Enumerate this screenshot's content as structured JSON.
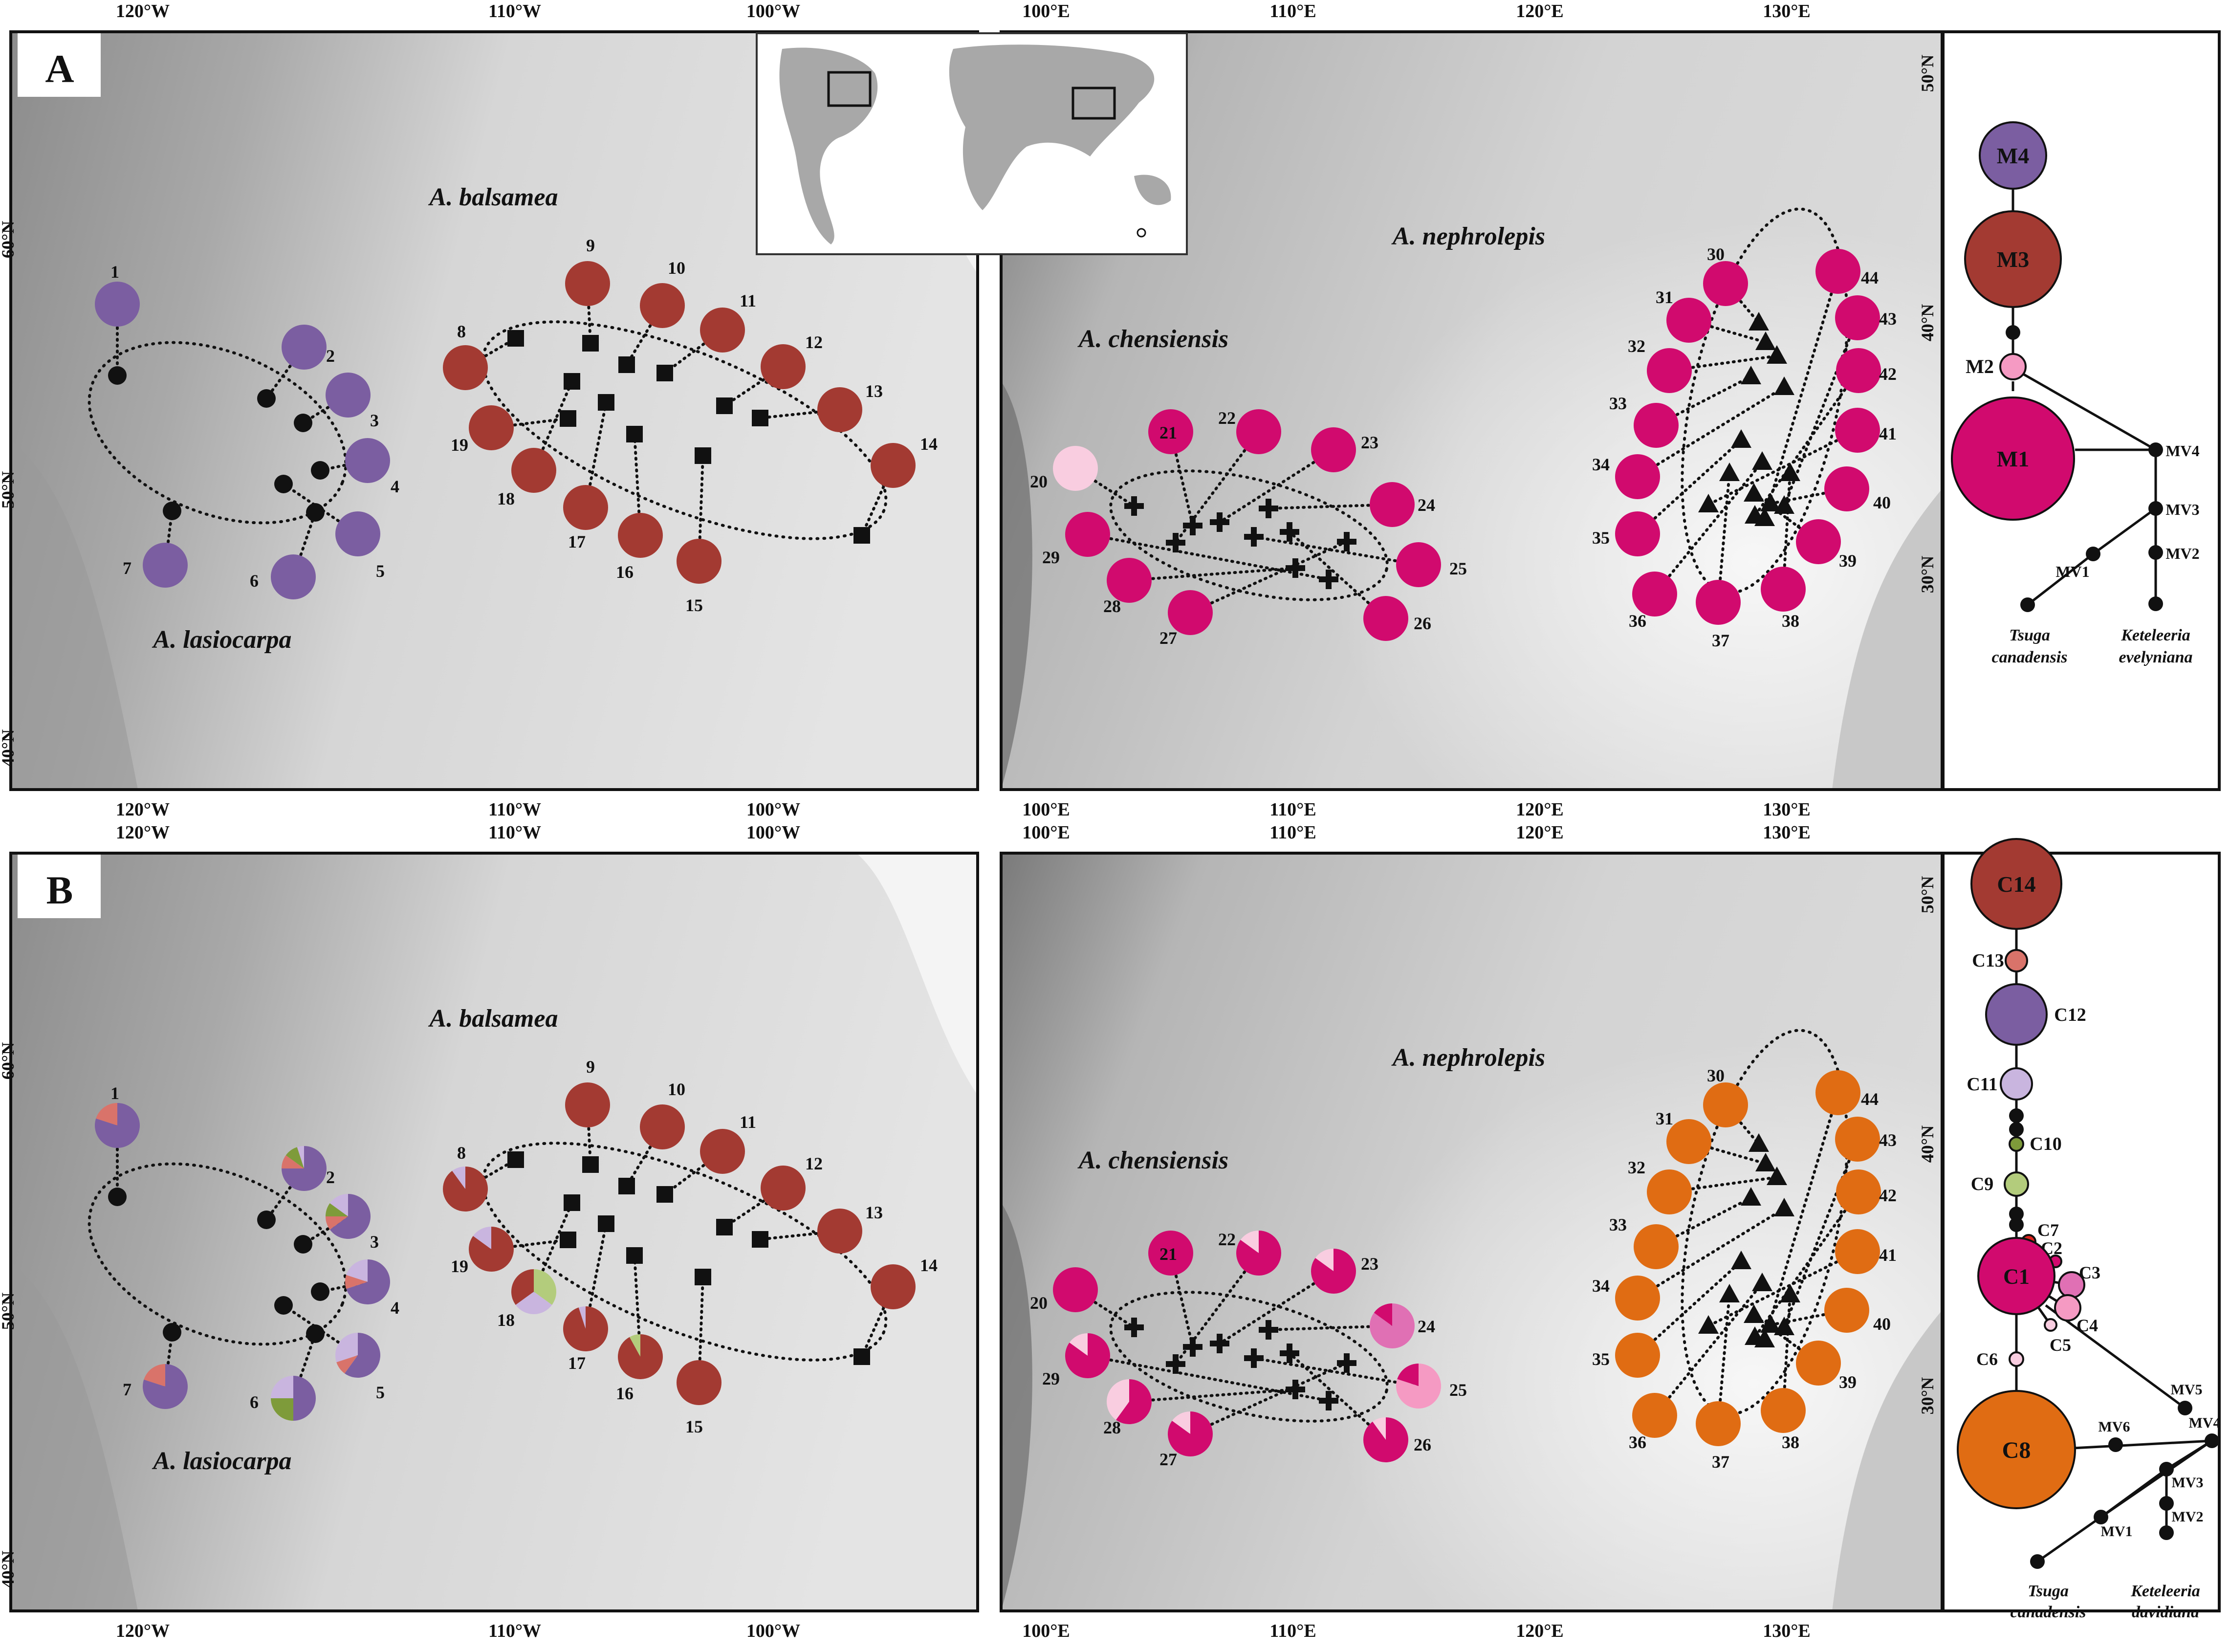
{
  "panels": [
    {
      "letter": "A",
      "na_species": {
        "lasiocarpa": "A. lasiocarpa",
        "balsamea": "A. balsamea"
      },
      "ea_species": {
        "chensiensis": "A. chensiensis",
        "nephrolepis": "A. nephrolepis"
      },
      "na_lon_ticks": [
        "120°W",
        "110°W",
        "100°W"
      ],
      "na_lat_ticks": [
        "60°N",
        "50°N",
        "40°N"
      ],
      "ea_lon_ticks": [
        "100°E",
        "110°E",
        "120°E",
        "130°E"
      ],
      "ea_lat_ticks": [
        "50°N",
        "40°N",
        "30°N"
      ],
      "network_type": "mito",
      "network_outgroups": {
        "a_line1": "Tsuga",
        "a_line2": "canadensis",
        "b_line1": "Keteleeria",
        "b_line2": "evelyniana"
      }
    },
    {
      "letter": "B",
      "na_species": {
        "lasiocarpa": "A. lasiocarpa",
        "balsamea": "A. balsamea"
      },
      "ea_species": {
        "chensiensis": "A. chensiensis",
        "nephrolepis": "A. nephrolepis"
      },
      "na_lon_ticks": [
        "120°W",
        "110°W",
        "100°W"
      ],
      "na_lat_ticks": [
        "60°N",
        "50°N",
        "40°N"
      ],
      "ea_lon_ticks": [
        "100°E",
        "110°E",
        "120°E",
        "130°E"
      ],
      "ea_lat_ticks": [
        "50°N",
        "40°N",
        "30°N"
      ],
      "network_type": "chloro",
      "network_outgroups": {
        "a_line1": "Tsuga",
        "a_line2": "canadensis",
        "b_line1": "Keteleeria",
        "b_line2": "davidiana"
      }
    }
  ],
  "colors": {
    "purple": "#7b5ea1",
    "brown": "#a33a32",
    "magenta": "#d10a6e",
    "pale_pink": "#f9cde0",
    "pink": "#f59ac3",
    "orange": "#e06c13",
    "salmon": "#d9736a",
    "lavender": "#c9b5df",
    "green": "#7e9b3a",
    "light_green": "#b3cc7c",
    "red": "#e0241e",
    "mid_pink": "#e070b4"
  },
  "mito_haplotypes": [
    "M4",
    "M3",
    "M2",
    "M1",
    "MV4",
    "MV3",
    "MV2",
    "MV1"
  ],
  "chloro_haplotypes": [
    "C14",
    "C13",
    "C12",
    "C11",
    "C10",
    "C9",
    "C7",
    "C2",
    "C3",
    "C1",
    "C4",
    "C5",
    "C6",
    "C8",
    "MV5",
    "MV4",
    "MV6",
    "MV3",
    "MV2",
    "MV1"
  ],
  "population_labels": [
    "1",
    "2",
    "3",
    "4",
    "5",
    "6",
    "7",
    "8",
    "9",
    "10",
    "11",
    "12",
    "13",
    "14",
    "15",
    "16",
    "17",
    "18",
    "19",
    "20",
    "21",
    "22",
    "23",
    "24",
    "25",
    "26",
    "27",
    "28",
    "29",
    "30",
    "31",
    "32",
    "33",
    "34",
    "35",
    "36",
    "37",
    "38",
    "39",
    "40",
    "41",
    "42",
    "43",
    "44"
  ],
  "populations_A": [
    {
      "id": "1",
      "color": "purple"
    },
    {
      "id": "2",
      "color": "purple"
    },
    {
      "id": "3",
      "color": "purple"
    },
    {
      "id": "4",
      "color": "purple"
    },
    {
      "id": "5",
      "color": "purple"
    },
    {
      "id": "6",
      "color": "purple"
    },
    {
      "id": "7",
      "color": "purple"
    },
    {
      "id": "8",
      "color": "brown"
    },
    {
      "id": "9",
      "color": "brown"
    },
    {
      "id": "10",
      "color": "brown"
    },
    {
      "id": "11",
      "color": "brown"
    },
    {
      "id": "12",
      "color": "brown"
    },
    {
      "id": "13",
      "color": "brown"
    },
    {
      "id": "14",
      "color": "brown"
    },
    {
      "id": "15",
      "color": "brown"
    },
    {
      "id": "16",
      "color": "brown"
    },
    {
      "id": "17",
      "color": "brown"
    },
    {
      "id": "18",
      "color": "brown"
    },
    {
      "id": "19",
      "color": "brown"
    },
    {
      "id": "20",
      "color": "pale_pink"
    },
    {
      "id": "21",
      "color": "magenta"
    },
    {
      "id": "22",
      "color": "magenta"
    },
    {
      "id": "23",
      "color": "magenta"
    },
    {
      "id": "24",
      "color": "magenta"
    },
    {
      "id": "25",
      "color": "magenta"
    },
    {
      "id": "26",
      "color": "magenta"
    },
    {
      "id": "27",
      "color": "magenta"
    },
    {
      "id": "28",
      "color": "magenta"
    },
    {
      "id": "29",
      "color": "magenta"
    },
    {
      "id": "30",
      "color": "magenta"
    },
    {
      "id": "31",
      "color": "magenta"
    },
    {
      "id": "32",
      "color": "magenta"
    },
    {
      "id": "33",
      "color": "magenta"
    },
    {
      "id": "34",
      "color": "magenta"
    },
    {
      "id": "35",
      "color": "magenta"
    },
    {
      "id": "36",
      "color": "magenta"
    },
    {
      "id": "37",
      "color": "magenta"
    },
    {
      "id": "38",
      "color": "magenta"
    },
    {
      "id": "39",
      "color": "magenta"
    },
    {
      "id": "40",
      "color": "magenta"
    },
    {
      "id": "41",
      "color": "magenta"
    },
    {
      "id": "42",
      "color": "magenta"
    },
    {
      "id": "43",
      "color": "magenta"
    },
    {
      "id": "44",
      "color": "magenta"
    }
  ]
}
